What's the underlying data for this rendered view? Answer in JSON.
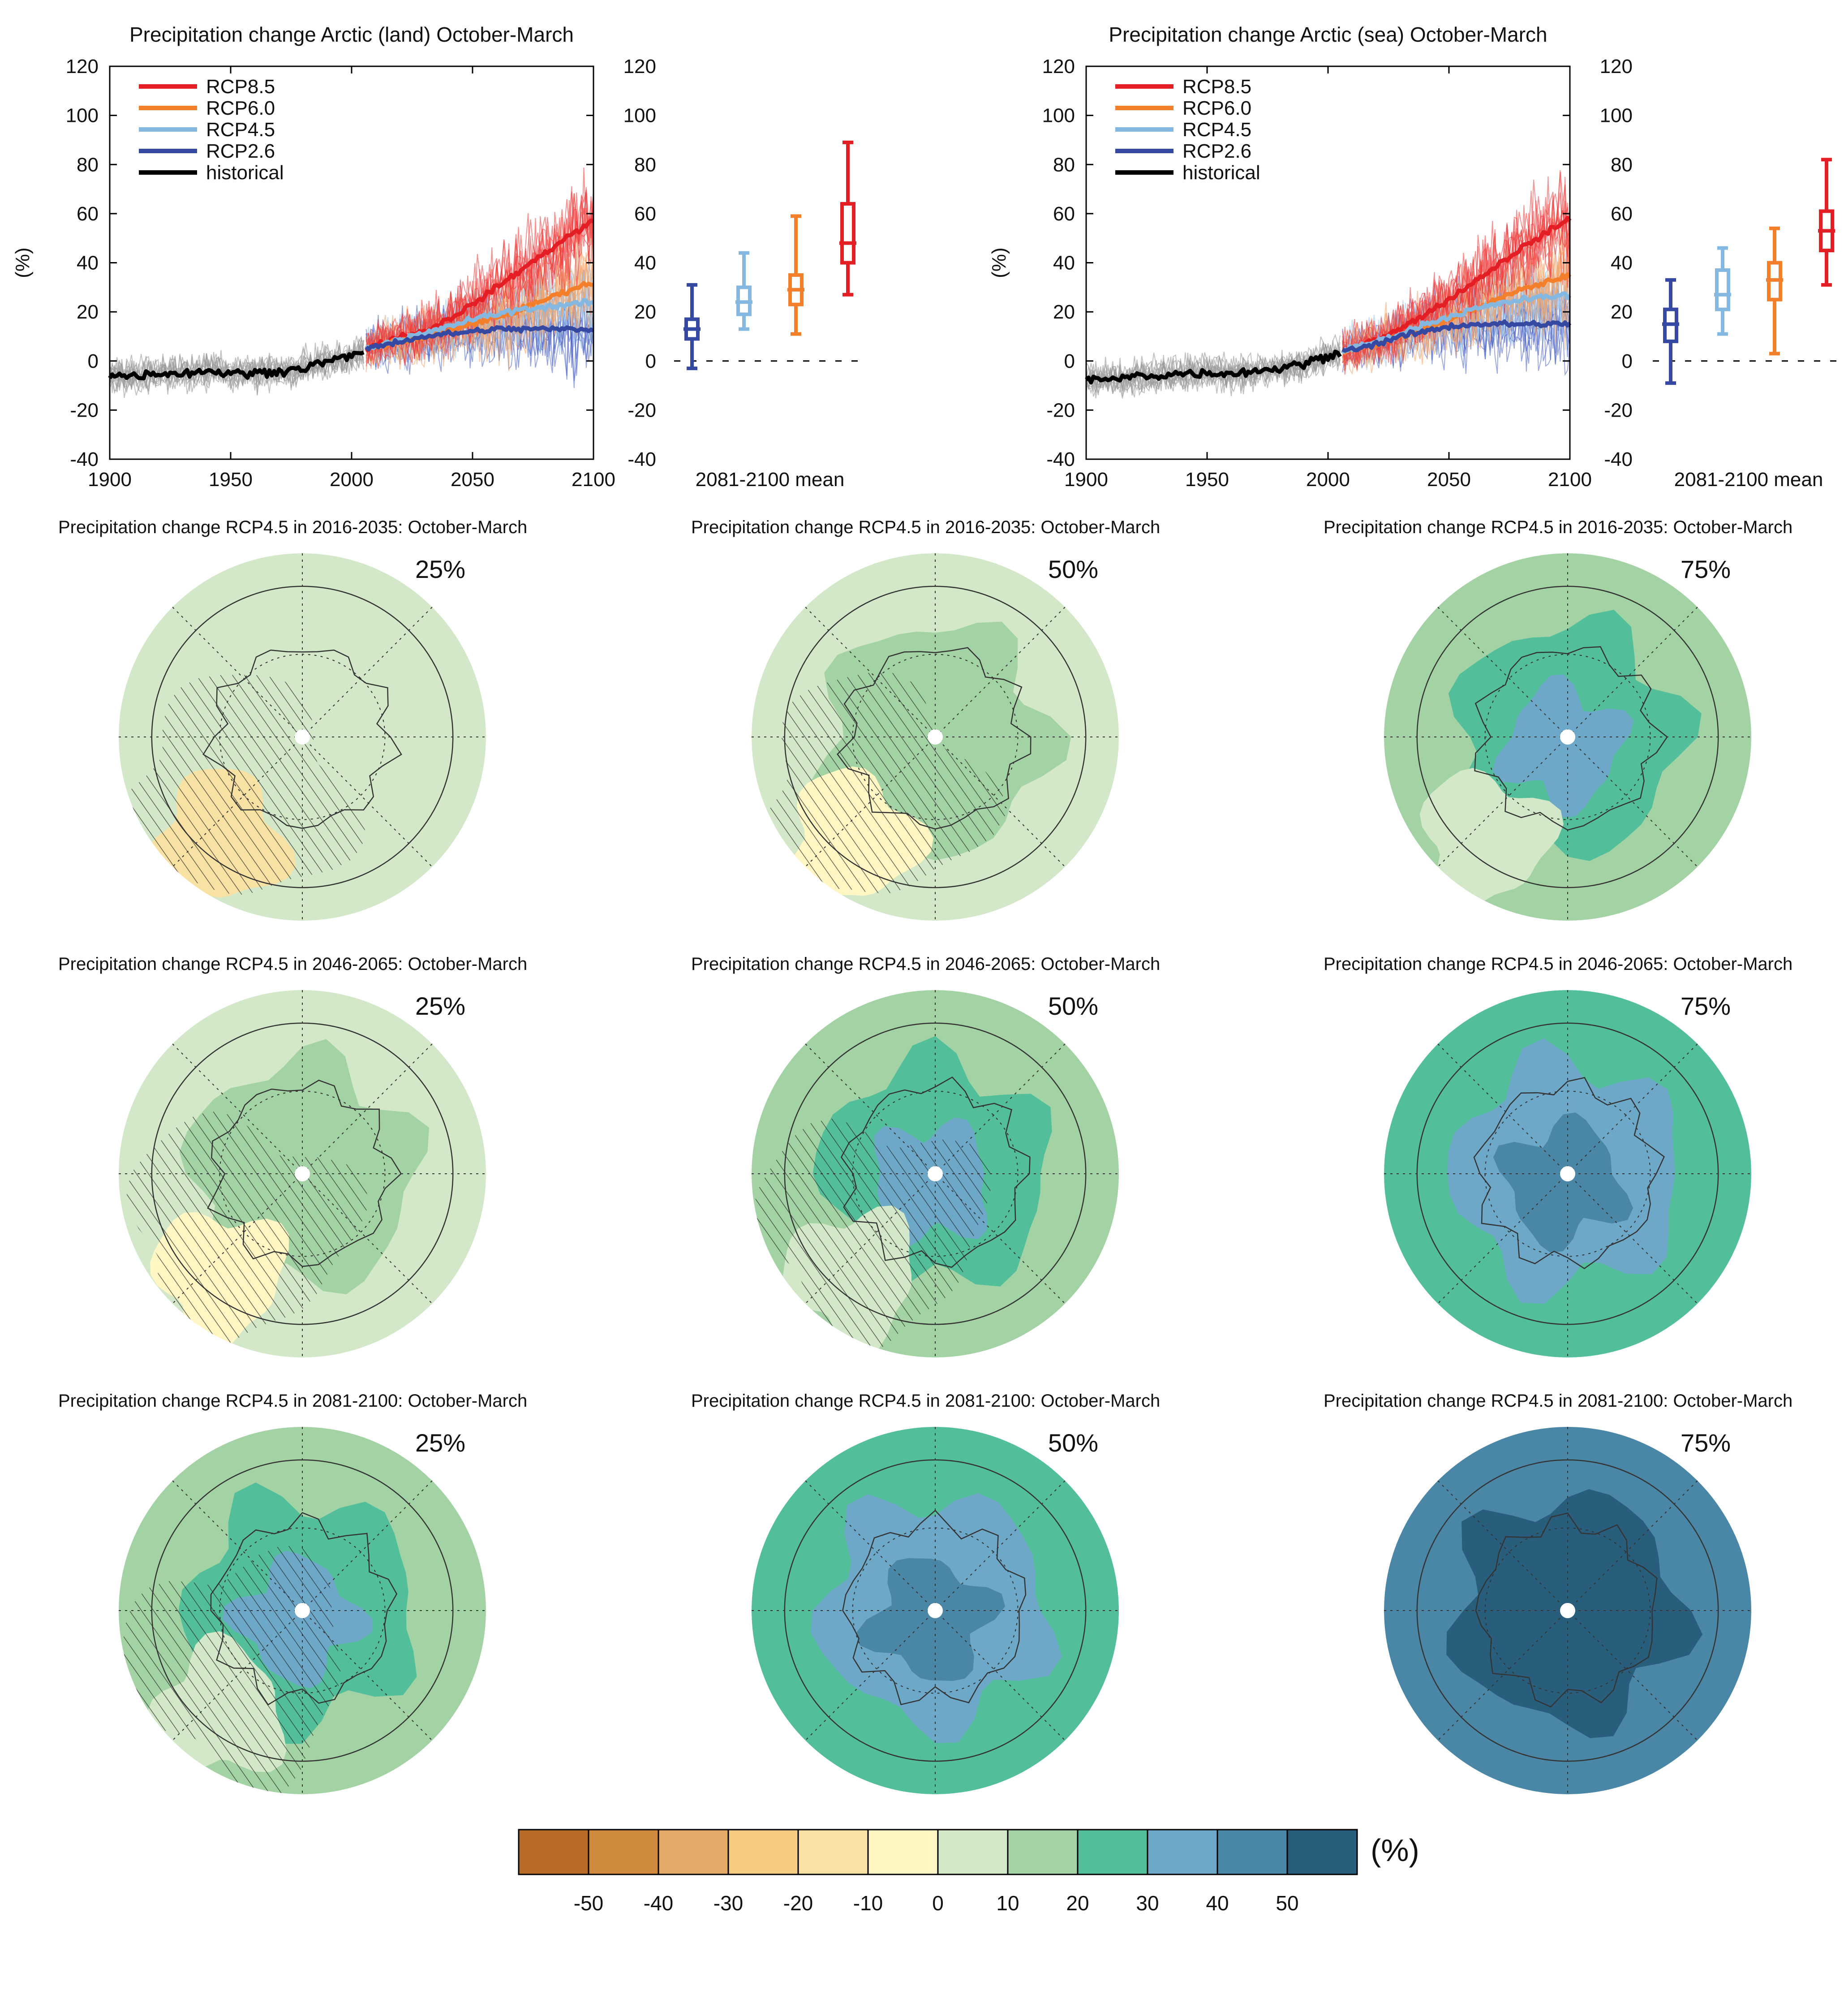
{
  "figure": {
    "colorbar_unit": "(%)",
    "colorbar_ticks": [
      "-50",
      "-40",
      "-30",
      "-20",
      "-10",
      "0",
      "10",
      "20",
      "30",
      "40",
      "50"
    ],
    "colorbar_colors": [
      "#b86b29",
      "#d08a3e",
      "#e4a867",
      "#f6cb82",
      "#f8e2a3",
      "#fff6c4",
      "#d3e8c8",
      "#a3d3a5",
      "#52bf9a",
      "#6ea8c8",
      "#4a86a6",
      "#285d7c"
    ]
  },
  "chart_data": [
    {
      "type": "line",
      "title": "Precipitation change Arctic (land) October-March",
      "ylabel": "(%)",
      "xlim": [
        1900,
        2100
      ],
      "ylim": [
        -40,
        120
      ],
      "x_ticks": [
        "1900",
        "1950",
        "2000",
        "2050",
        "2100"
      ],
      "y_ticks": [
        "-40",
        "-20",
        "0",
        "20",
        "40",
        "60",
        "80",
        "100",
        "120"
      ],
      "legend_position": "top-left",
      "series": [
        {
          "name": "RCP8.5",
          "color": "#e31e24",
          "x": [
            2006,
            2020,
            2030,
            2040,
            2050,
            2060,
            2070,
            2080,
            2090,
            2100
          ],
          "values": [
            5,
            10,
            12,
            17,
            23,
            30,
            37,
            44,
            51,
            57
          ]
        },
        {
          "name": "RCP6.0",
          "color": "#f47f2b",
          "x": [
            2006,
            2020,
            2030,
            2040,
            2050,
            2060,
            2070,
            2080,
            2090,
            2100
          ],
          "values": [
            5,
            8,
            10,
            12,
            15,
            18,
            21,
            25,
            29,
            32
          ]
        },
        {
          "name": "RCP4.5",
          "color": "#84b8e0",
          "x": [
            2006,
            2020,
            2030,
            2040,
            2050,
            2060,
            2070,
            2080,
            2090,
            2100
          ],
          "values": [
            5,
            9,
            11,
            14,
            17,
            19,
            21,
            22,
            23,
            24
          ]
        },
        {
          "name": "RCP2.6",
          "color": "#3549a2",
          "x": [
            2006,
            2020,
            2030,
            2040,
            2050,
            2060,
            2070,
            2080,
            2090,
            2100
          ],
          "values": [
            5,
            8,
            10,
            11,
            12,
            13,
            13,
            13,
            13,
            13
          ]
        },
        {
          "name": "historical",
          "color": "#000000",
          "x": [
            1900,
            1910,
            1920,
            1930,
            1940,
            1950,
            1960,
            1970,
            1980,
            1990,
            2000,
            2005
          ],
          "values": [
            -6,
            -6,
            -5,
            -5,
            -4,
            -5,
            -5,
            -4,
            -3,
            0,
            2,
            4
          ]
        }
      ],
      "box_summary": {
        "label": "2081-2100 mean",
        "boxes": [
          {
            "scenario": "RCP2.6",
            "color": "#3549a2",
            "min": -3,
            "q1": 9,
            "median": 13,
            "q3": 17,
            "max": 31
          },
          {
            "scenario": "RCP4.5",
            "color": "#84b8e0",
            "min": 13,
            "q1": 19,
            "median": 24,
            "q3": 30,
            "max": 44
          },
          {
            "scenario": "RCP6.0",
            "color": "#f47f2b",
            "min": 11,
            "q1": 23,
            "median": 29,
            "q3": 35,
            "max": 59
          },
          {
            "scenario": "RCP8.5",
            "color": "#e31e24",
            "min": 27,
            "q1": 40,
            "median": 48,
            "q3": 64,
            "max": 89
          }
        ]
      }
    },
    {
      "type": "line",
      "title": "Precipitation change Arctic (sea) October-March",
      "ylabel": "(%)",
      "xlim": [
        1900,
        2100
      ],
      "ylim": [
        -40,
        120
      ],
      "x_ticks": [
        "1900",
        "1950",
        "2000",
        "2050",
        "2100"
      ],
      "y_ticks": [
        "-40",
        "-20",
        "0",
        "20",
        "40",
        "60",
        "80",
        "100",
        "120"
      ],
      "legend_position": "top-left",
      "series": [
        {
          "name": "RCP8.5",
          "color": "#e31e24",
          "x": [
            2006,
            2020,
            2030,
            2040,
            2050,
            2060,
            2070,
            2080,
            2090,
            2100
          ],
          "values": [
            4,
            9,
            13,
            19,
            25,
            32,
            39,
            46,
            52,
            58
          ]
        },
        {
          "name": "RCP6.0",
          "color": "#f47f2b",
          "x": [
            2006,
            2020,
            2030,
            2040,
            2050,
            2060,
            2070,
            2080,
            2090,
            2100
          ],
          "values": [
            4,
            7,
            10,
            13,
            17,
            21,
            25,
            29,
            32,
            35
          ]
        },
        {
          "name": "RCP4.5",
          "color": "#84b8e0",
          "x": [
            2006,
            2020,
            2030,
            2040,
            2050,
            2060,
            2070,
            2080,
            2090,
            2100
          ],
          "values": [
            4,
            8,
            11,
            15,
            18,
            21,
            23,
            25,
            26,
            27
          ]
        },
        {
          "name": "RCP2.6",
          "color": "#3549a2",
          "x": [
            2006,
            2020,
            2030,
            2040,
            2050,
            2060,
            2070,
            2080,
            2090,
            2100
          ],
          "values": [
            4,
            7,
            10,
            12,
            14,
            15,
            15,
            15,
            15,
            15
          ]
        },
        {
          "name": "historical",
          "color": "#000000",
          "x": [
            1900,
            1910,
            1920,
            1930,
            1940,
            1950,
            1960,
            1970,
            1980,
            1990,
            2000,
            2005
          ],
          "values": [
            -7,
            -8,
            -6,
            -6,
            -5,
            -5,
            -5,
            -4,
            -3,
            -1,
            2,
            4
          ]
        }
      ],
      "box_summary": {
        "label": "2081-2100 mean",
        "boxes": [
          {
            "scenario": "RCP2.6",
            "color": "#3549a2",
            "min": -9,
            "q1": 8,
            "median": 15,
            "q3": 21,
            "max": 33
          },
          {
            "scenario": "RCP4.5",
            "color": "#84b8e0",
            "min": 11,
            "q1": 21,
            "median": 27,
            "q3": 37,
            "max": 46
          },
          {
            "scenario": "RCP6.0",
            "color": "#f47f2b",
            "min": 3,
            "q1": 25,
            "median": 33,
            "q3": 40,
            "max": 54
          },
          {
            "scenario": "RCP8.5",
            "color": "#e31e24",
            "min": 31,
            "q1": 45,
            "median": 53,
            "q3": 61,
            "max": 82
          }
        ]
      }
    },
    {
      "type": "heatmap",
      "title": "Precipitation change RCP4.5 in 2016-2035: October-March",
      "percentile": "25%",
      "level_index": 6,
      "hatched": true
    },
    {
      "type": "heatmap",
      "title": "Precipitation change RCP4.5 in 2016-2035: October-March",
      "percentile": "50%",
      "level_index": 7,
      "hatched": true
    },
    {
      "type": "heatmap",
      "title": "Precipitation change RCP4.5 in 2016-2035: October-March",
      "percentile": "75%",
      "level_index": 8,
      "hatched": false
    },
    {
      "type": "heatmap",
      "title": "Precipitation change RCP4.5 in 2046-2065: October-March",
      "percentile": "25%",
      "level_index": 7,
      "hatched": true
    },
    {
      "type": "heatmap",
      "title": "Precipitation change RCP4.5 in 2046-2065: October-March",
      "percentile": "50%",
      "level_index": 8,
      "hatched": true
    },
    {
      "type": "heatmap",
      "title": "Precipitation change RCP4.5 in 2046-2065: October-March",
      "percentile": "75%",
      "level_index": 9,
      "hatched": false
    },
    {
      "type": "heatmap",
      "title": "Precipitation change RCP4.5 in 2081-2100: October-March",
      "percentile": "25%",
      "level_index": 8,
      "hatched": true
    },
    {
      "type": "heatmap",
      "title": "Precipitation change RCP4.5 in 2081-2100: October-March",
      "percentile": "50%",
      "level_index": 9,
      "hatched": false
    },
    {
      "type": "heatmap",
      "title": "Precipitation change RCP4.5 in 2081-2100: October-March",
      "percentile": "75%",
      "level_index": 11,
      "hatched": false
    }
  ]
}
